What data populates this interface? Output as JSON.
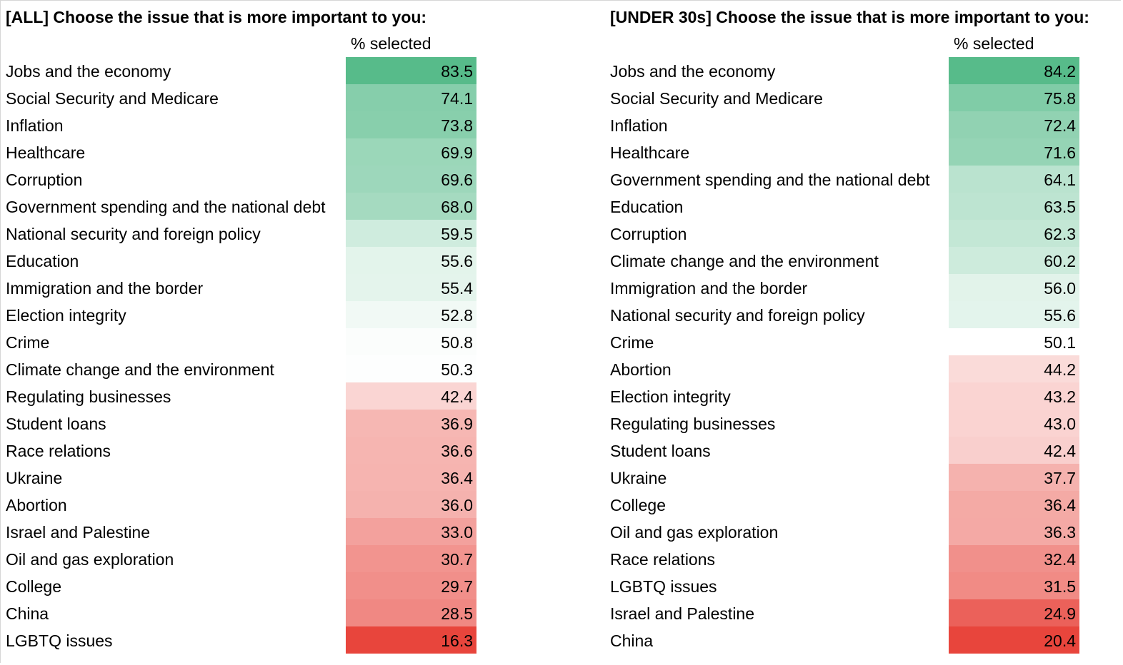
{
  "palette": {
    "high": "#57bb8a",
    "mid": "#ffffff",
    "low": "#e67c73",
    "min_red": "#e8453c"
  },
  "panels": [
    {
      "title": "[ALL] Choose the issue that is more important to you:",
      "column_header": "% selected",
      "rows": [
        {
          "label": "Jobs and the economy",
          "value": "83.5"
        },
        {
          "label": "Social Security and Medicare",
          "value": "74.1"
        },
        {
          "label": "Inflation",
          "value": "73.8"
        },
        {
          "label": "Healthcare",
          "value": "69.9"
        },
        {
          "label": "Corruption",
          "value": "69.6"
        },
        {
          "label": "Government spending and the national debt",
          "value": "68.0"
        },
        {
          "label": "National security and foreign policy",
          "value": "59.5"
        },
        {
          "label": "Education",
          "value": "55.6"
        },
        {
          "label": "Immigration and the border",
          "value": "55.4"
        },
        {
          "label": "Election integrity",
          "value": "52.8"
        },
        {
          "label": "Crime",
          "value": "50.8"
        },
        {
          "label": "Climate change and the environment",
          "value": "50.3"
        },
        {
          "label": "Regulating businesses",
          "value": "42.4"
        },
        {
          "label": "Student loans",
          "value": "36.9"
        },
        {
          "label": "Race relations",
          "value": "36.6"
        },
        {
          "label": "Ukraine",
          "value": "36.4"
        },
        {
          "label": "Abortion",
          "value": "36.0"
        },
        {
          "label": "Israel and Palestine",
          "value": "33.0"
        },
        {
          "label": "Oil and gas exploration",
          "value": "30.7"
        },
        {
          "label": "College",
          "value": "29.7"
        },
        {
          "label": "China",
          "value": "28.5"
        },
        {
          "label": "LGBTQ issues",
          "value": "16.3"
        }
      ]
    },
    {
      "title": "[UNDER 30s] Choose the issue that is more important to you:",
      "column_header": "% selected",
      "rows": [
        {
          "label": "Jobs and the economy",
          "value": "84.2"
        },
        {
          "label": "Social Security and Medicare",
          "value": "75.8"
        },
        {
          "label": "Inflation",
          "value": "72.4"
        },
        {
          "label": "Healthcare",
          "value": "71.6"
        },
        {
          "label": "Government spending and the national debt",
          "value": "64.1"
        },
        {
          "label": "Education",
          "value": "63.5"
        },
        {
          "label": "Corruption",
          "value": "62.3"
        },
        {
          "label": "Climate change and the environment",
          "value": "60.2"
        },
        {
          "label": "Immigration and the border",
          "value": "56.0"
        },
        {
          "label": "National security and foreign policy",
          "value": "55.6"
        },
        {
          "label": "Crime",
          "value": "50.1"
        },
        {
          "label": "Abortion",
          "value": "44.2"
        },
        {
          "label": "Election integrity",
          "value": "43.2"
        },
        {
          "label": "Regulating businesses",
          "value": "43.0"
        },
        {
          "label": "Student loans",
          "value": "42.4"
        },
        {
          "label": "Ukraine",
          "value": "37.7"
        },
        {
          "label": "College",
          "value": "36.4"
        },
        {
          "label": "Oil and gas exploration",
          "value": "36.3"
        },
        {
          "label": "Race relations",
          "value": "32.4"
        },
        {
          "label": "LGBTQ issues",
          "value": "31.5"
        },
        {
          "label": "Israel and Palestine",
          "value": "24.9"
        },
        {
          "label": "China",
          "value": "20.4"
        }
      ]
    }
  ]
}
